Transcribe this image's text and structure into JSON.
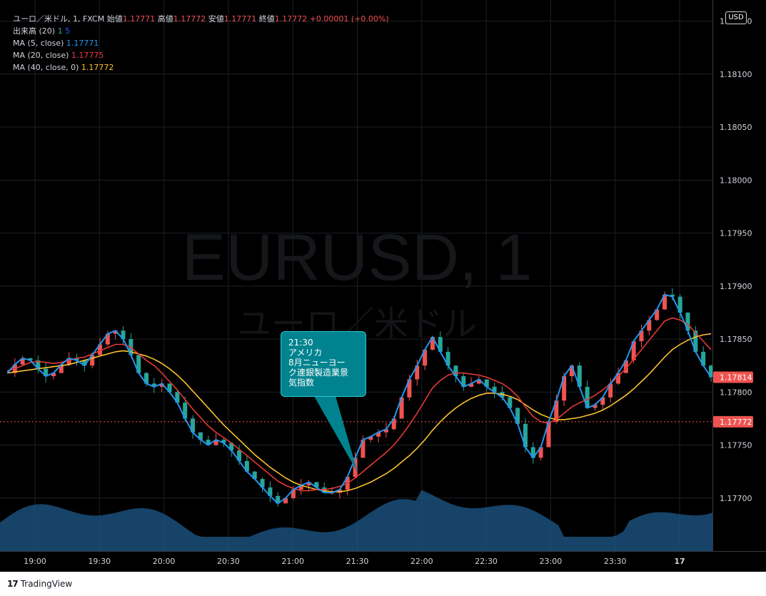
{
  "legend": {
    "title": "ユーロ／米ドル, 1, FXCM",
    "open_label": "始値",
    "open_value": "1.17771",
    "high_label": "高値",
    "high_value": "1.17772",
    "low_label": "安値",
    "low_value": "1.17771",
    "close_label": "終値",
    "close_value": "1.17772",
    "change": "+0.00001 (+0.00%)",
    "volume_label": "出来高 (20)",
    "volume_a": "1",
    "volume_b": "5",
    "ma5_label": "MA (5, close)",
    "ma5_value": "1.17771",
    "ma20_label": "MA (20, close)",
    "ma20_value": "1.17775",
    "ma40_label": "MA (40, close, 0)",
    "ma40_value": "1.17772"
  },
  "currency_button": "USD",
  "watermark": {
    "symbol": "EURUSD, 1",
    "name": "ユーロ／米ドル"
  },
  "event": {
    "time": "21:30",
    "line1": "アメリカ",
    "line2": "8月ニューヨー",
    "line3": "ク連銀製造業景",
    "line4": "気指数"
  },
  "price_tags": {
    "current": "1.17814",
    "last": "1.17772"
  },
  "brand": "TradingView",
  "colors": {
    "up": "#ef5350",
    "down": "#26a69a",
    "ma5": "#2196f3",
    "ma20": "#e53935",
    "ma40": "#fbc02d",
    "volume": "#1e5a8a",
    "bubble": "#00838f"
  },
  "chart_data": {
    "type": "line",
    "ylim": [
      1.1765,
      1.1817
    ],
    "y_ticks": [
      "1.18150",
      "1.18100",
      "1.18050",
      "1.18000",
      "1.17950",
      "1.17900",
      "1.17850",
      "1.17800",
      "1.17750",
      "1.17700"
    ],
    "x_ticks": [
      "19:00",
      "19:30",
      "20:00",
      "20:30",
      "21:00",
      "21:30",
      "22:00",
      "22:30",
      "23:00",
      "23:30",
      "17"
    ],
    "grid": true,
    "series": [
      {
        "name": "MA (5, close)",
        "values": [
          1.17818,
          1.17826,
          1.17832,
          1.1783,
          1.17822,
          1.17815,
          1.17818,
          1.17826,
          1.17832,
          1.1783,
          1.17825,
          1.17835,
          1.17845,
          1.17855,
          1.17858,
          1.1785,
          1.17835,
          1.17818,
          1.17808,
          1.17805,
          1.17808,
          1.178,
          1.1779,
          1.17775,
          1.17762,
          1.17755,
          1.1775,
          1.17755,
          1.17752,
          1.17745,
          1.17735,
          1.17725,
          1.17718,
          1.1771,
          1.17702,
          1.17695,
          1.177,
          1.17708,
          1.17712,
          1.17715,
          1.1771,
          1.17705,
          1.17705,
          1.17708,
          1.1772,
          1.17738,
          1.17755,
          1.17758,
          1.17762,
          1.17765,
          1.17775,
          1.17795,
          1.17812,
          1.17825,
          1.1784,
          1.17852,
          1.17838,
          1.17825,
          1.17815,
          1.17805,
          1.17808,
          1.17812,
          1.17805,
          1.178,
          1.17795,
          1.17785,
          1.1777,
          1.17748,
          1.17738,
          1.17748,
          1.17772,
          1.17792,
          1.17815,
          1.17825,
          1.17805,
          1.17785,
          1.17788,
          1.17795,
          1.17808,
          1.17818,
          1.1783,
          1.17848,
          1.17858,
          1.17868,
          1.17878,
          1.17892,
          1.1789,
          1.17875,
          1.17858,
          1.17838,
          1.17825,
          1.17814
        ]
      },
      {
        "name": "MA (20, close)",
        "values": [
          1.1782,
          1.17822,
          1.17825,
          1.17828,
          1.17829,
          1.17828,
          1.17827,
          1.17828,
          1.1783,
          1.17832,
          1.17833,
          1.17836,
          1.17839,
          1.17842,
          1.17845,
          1.17845,
          1.17842,
          1.17836,
          1.1783,
          1.17825,
          1.17818,
          1.1781,
          1.17802,
          1.17793,
          1.17784,
          1.17776,
          1.17768,
          1.17762,
          1.17757,
          1.17752,
          1.17746,
          1.1774,
          1.17734,
          1.17728,
          1.17722,
          1.17716,
          1.17712,
          1.17709,
          1.17707,
          1.17707,
          1.17708,
          1.17708,
          1.17709,
          1.17711,
          1.17714,
          1.17719,
          1.17725,
          1.17731,
          1.17737,
          1.17743,
          1.1775,
          1.17759,
          1.17769,
          1.1778,
          1.17792,
          1.17804,
          1.17811,
          1.17816,
          1.17818,
          1.17818,
          1.17817,
          1.17816,
          1.17814,
          1.17811,
          1.17808,
          1.17803,
          1.17796,
          1.17786,
          1.17777,
          1.17772,
          1.17771,
          1.17774,
          1.1778,
          1.17786,
          1.1779,
          1.17793,
          1.17797,
          1.17802,
          1.17808,
          1.17815,
          1.17822,
          1.17831,
          1.1784,
          1.17849,
          1.17858,
          1.17867,
          1.1787,
          1.17868,
          1.17864,
          1.17856,
          1.17848,
          1.1784
        ]
      },
      {
        "name": "MA (40, close, 0)",
        "values": [
          1.17818,
          1.17819,
          1.1782,
          1.17821,
          1.17822,
          1.17823,
          1.17824,
          1.17825,
          1.17826,
          1.17828,
          1.1783,
          1.17832,
          1.17834,
          1.17836,
          1.17838,
          1.17839,
          1.17838,
          1.17836,
          1.17834,
          1.17831,
          1.17827,
          1.17822,
          1.17816,
          1.17809,
          1.17801,
          1.17793,
          1.17785,
          1.17777,
          1.17769,
          1.17762,
          1.17755,
          1.17748,
          1.17741,
          1.17735,
          1.17729,
          1.17724,
          1.17719,
          1.17715,
          1.17712,
          1.1771,
          1.17708,
          1.17707,
          1.17706,
          1.17706,
          1.17707,
          1.17709,
          1.17712,
          1.17715,
          1.17719,
          1.17723,
          1.17728,
          1.17734,
          1.1774,
          1.17747,
          1.17755,
          1.17764,
          1.17772,
          1.17779,
          1.17785,
          1.1779,
          1.17794,
          1.17797,
          1.17799,
          1.17799,
          1.17798,
          1.17796,
          1.17793,
          1.17788,
          1.17783,
          1.17779,
          1.17776,
          1.17774,
          1.17774,
          1.17775,
          1.17776,
          1.17778,
          1.1778,
          1.17783,
          1.17787,
          1.17792,
          1.17797,
          1.17803,
          1.1781,
          1.17817,
          1.17825,
          1.17833,
          1.1784,
          1.17845,
          1.17849,
          1.17852,
          1.17854,
          1.17855
        ]
      }
    ]
  }
}
